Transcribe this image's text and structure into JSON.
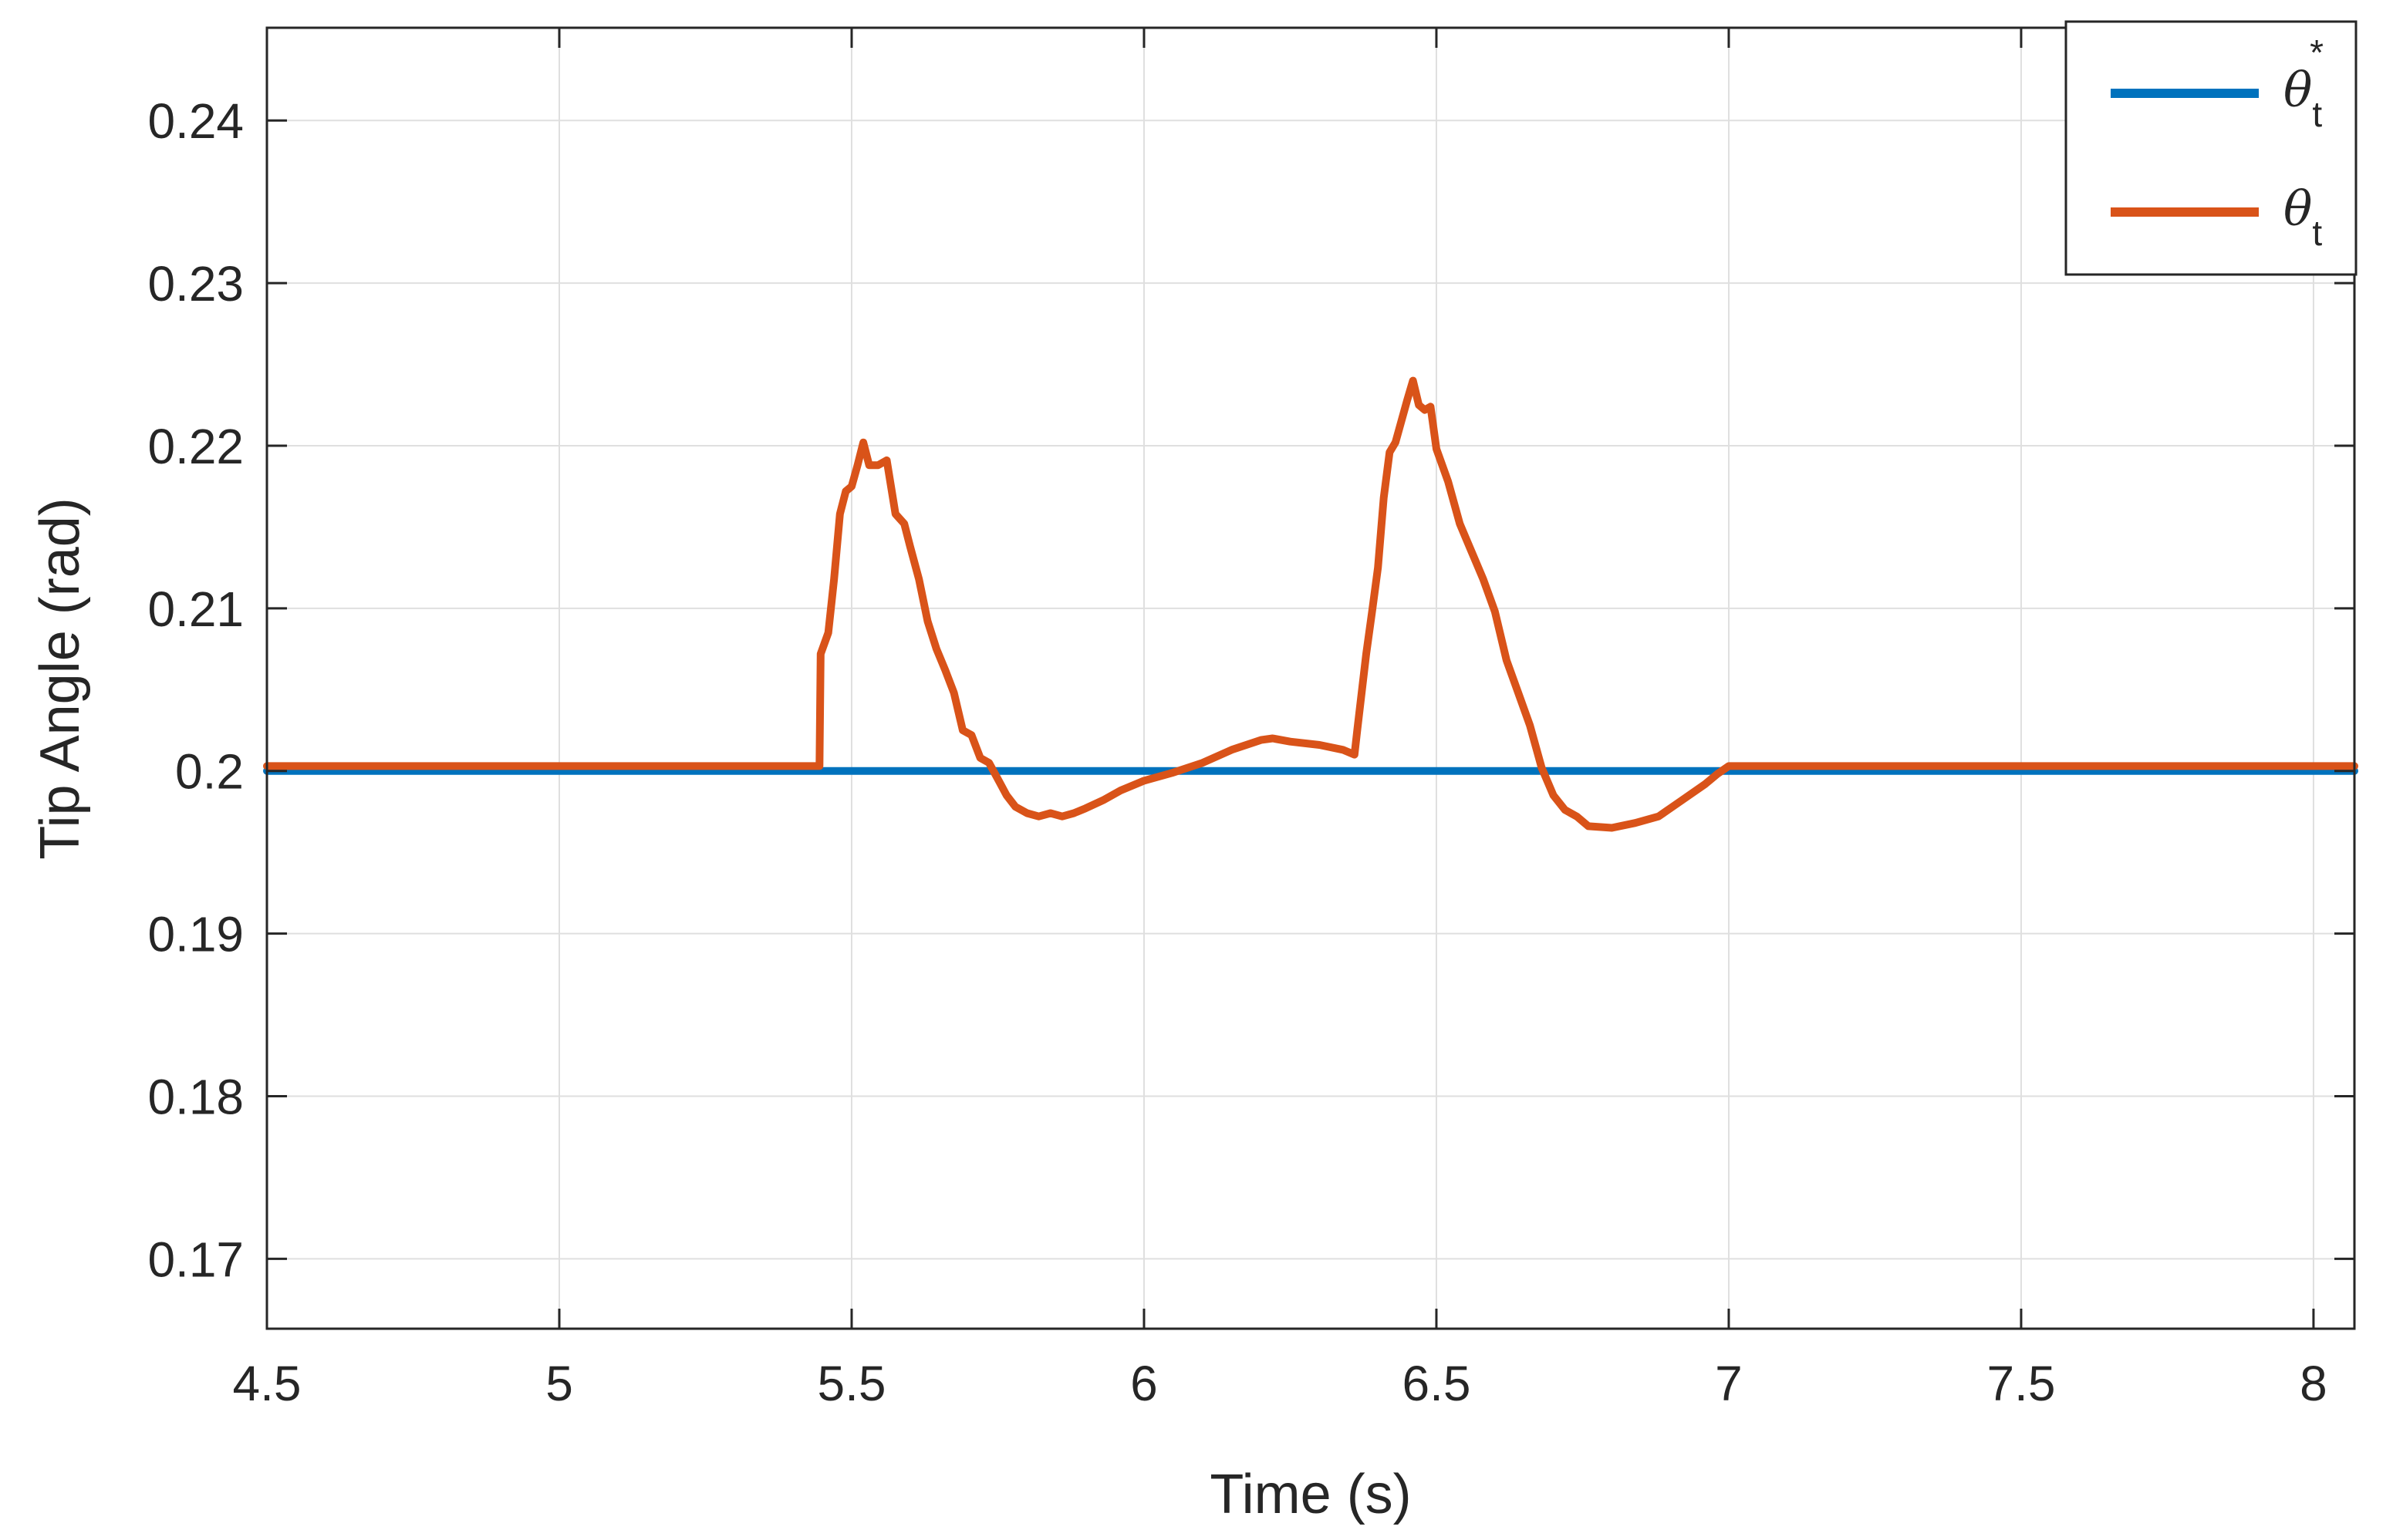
{
  "chart_data": {
    "type": "line",
    "title": "",
    "xlabel": "Time (s)",
    "ylabel": "Tip Angle (rad)",
    "xlim": [
      4.5,
      8.07
    ],
    "ylim": [
      0.1657,
      0.2457
    ],
    "xticks": [
      4.5,
      5,
      5.5,
      6,
      6.5,
      7,
      7.5,
      8
    ],
    "xtick_labels": [
      "4.5",
      "5",
      "5.5",
      "6",
      "6.5",
      "7",
      "7.5",
      "8"
    ],
    "yticks": [
      0.17,
      0.18,
      0.19,
      0.2,
      0.21,
      0.22,
      0.23,
      0.24
    ],
    "ytick_labels": [
      "0.17",
      "0.18",
      "0.19",
      "0.2",
      "0.21",
      "0.22",
      "0.23",
      "0.24"
    ],
    "grid": true,
    "legend_position": "top-right",
    "series": [
      {
        "name": "θt*",
        "color": "#0072bd",
        "points": [
          [
            4.5,
            0.2
          ],
          [
            8.07,
            0.2
          ]
        ]
      },
      {
        "name": "θt",
        "color": "#d95319",
        "points": [
          [
            4.5,
            0.2003
          ],
          [
            5.44,
            0.2003
          ],
          [
            5.445,
            0.2003
          ],
          [
            5.447,
            0.2072
          ],
          [
            5.46,
            0.2085
          ],
          [
            5.47,
            0.2118
          ],
          [
            5.48,
            0.2158
          ],
          [
            5.49,
            0.2172
          ],
          [
            5.5,
            0.2175
          ],
          [
            5.51,
            0.2188
          ],
          [
            5.52,
            0.2202
          ],
          [
            5.53,
            0.2188
          ],
          [
            5.545,
            0.2188
          ],
          [
            5.56,
            0.2191
          ],
          [
            5.575,
            0.2158
          ],
          [
            5.59,
            0.2152
          ],
          [
            5.6,
            0.2138
          ],
          [
            5.615,
            0.2118
          ],
          [
            5.63,
            0.2092
          ],
          [
            5.645,
            0.2075
          ],
          [
            5.66,
            0.2062
          ],
          [
            5.675,
            0.2048
          ],
          [
            5.69,
            0.2025
          ],
          [
            5.705,
            0.2022
          ],
          [
            5.72,
            0.2008
          ],
          [
            5.735,
            0.2005
          ],
          [
            5.75,
            0.1995
          ],
          [
            5.765,
            0.1985
          ],
          [
            5.78,
            0.1978
          ],
          [
            5.8,
            0.1974
          ],
          [
            5.82,
            0.1972
          ],
          [
            5.84,
            0.1974
          ],
          [
            5.86,
            0.1972
          ],
          [
            5.88,
            0.1974
          ],
          [
            5.9,
            0.1977
          ],
          [
            5.93,
            0.1982
          ],
          [
            5.96,
            0.1988
          ],
          [
            6.0,
            0.1994
          ],
          [
            6.05,
            0.1999
          ],
          [
            6.1,
            0.2005
          ],
          [
            6.15,
            0.2013
          ],
          [
            6.2,
            0.2019
          ],
          [
            6.22,
            0.202
          ],
          [
            6.25,
            0.2018
          ],
          [
            6.3,
            0.2016
          ],
          [
            6.34,
            0.2013
          ],
          [
            6.36,
            0.201
          ],
          [
            6.365,
            0.2026
          ],
          [
            6.38,
            0.2072
          ],
          [
            6.39,
            0.2098
          ],
          [
            6.4,
            0.2125
          ],
          [
            6.41,
            0.2168
          ],
          [
            6.42,
            0.2196
          ],
          [
            6.43,
            0.2202
          ],
          [
            6.44,
            0.2215
          ],
          [
            6.45,
            0.2228
          ],
          [
            6.46,
            0.224
          ],
          [
            6.47,
            0.2225
          ],
          [
            6.48,
            0.2222
          ],
          [
            6.49,
            0.2224
          ],
          [
            6.5,
            0.2198
          ],
          [
            6.52,
            0.2178
          ],
          [
            6.54,
            0.2152
          ],
          [
            6.56,
            0.2135
          ],
          [
            6.58,
            0.2118
          ],
          [
            6.6,
            0.2098
          ],
          [
            6.62,
            0.2068
          ],
          [
            6.64,
            0.2048
          ],
          [
            6.66,
            0.2028
          ],
          [
            6.68,
            0.2002
          ],
          [
            6.7,
            0.1985
          ],
          [
            6.72,
            0.1976
          ],
          [
            6.74,
            0.1972
          ],
          [
            6.76,
            0.1966
          ],
          [
            6.8,
            0.1965
          ],
          [
            6.84,
            0.1968
          ],
          [
            6.88,
            0.1972
          ],
          [
            6.92,
            0.1982
          ],
          [
            6.96,
            0.1992
          ],
          [
            6.98,
            0.1998
          ],
          [
            7.0,
            0.2003
          ],
          [
            8.07,
            0.2003
          ]
        ]
      }
    ]
  },
  "legend": {
    "items": [
      {
        "symbol": "θ",
        "sub": "t",
        "sup": "*",
        "color": "#0072bd"
      },
      {
        "symbol": "θ",
        "sub": "t",
        "sup": "",
        "color": "#d95319"
      }
    ]
  }
}
